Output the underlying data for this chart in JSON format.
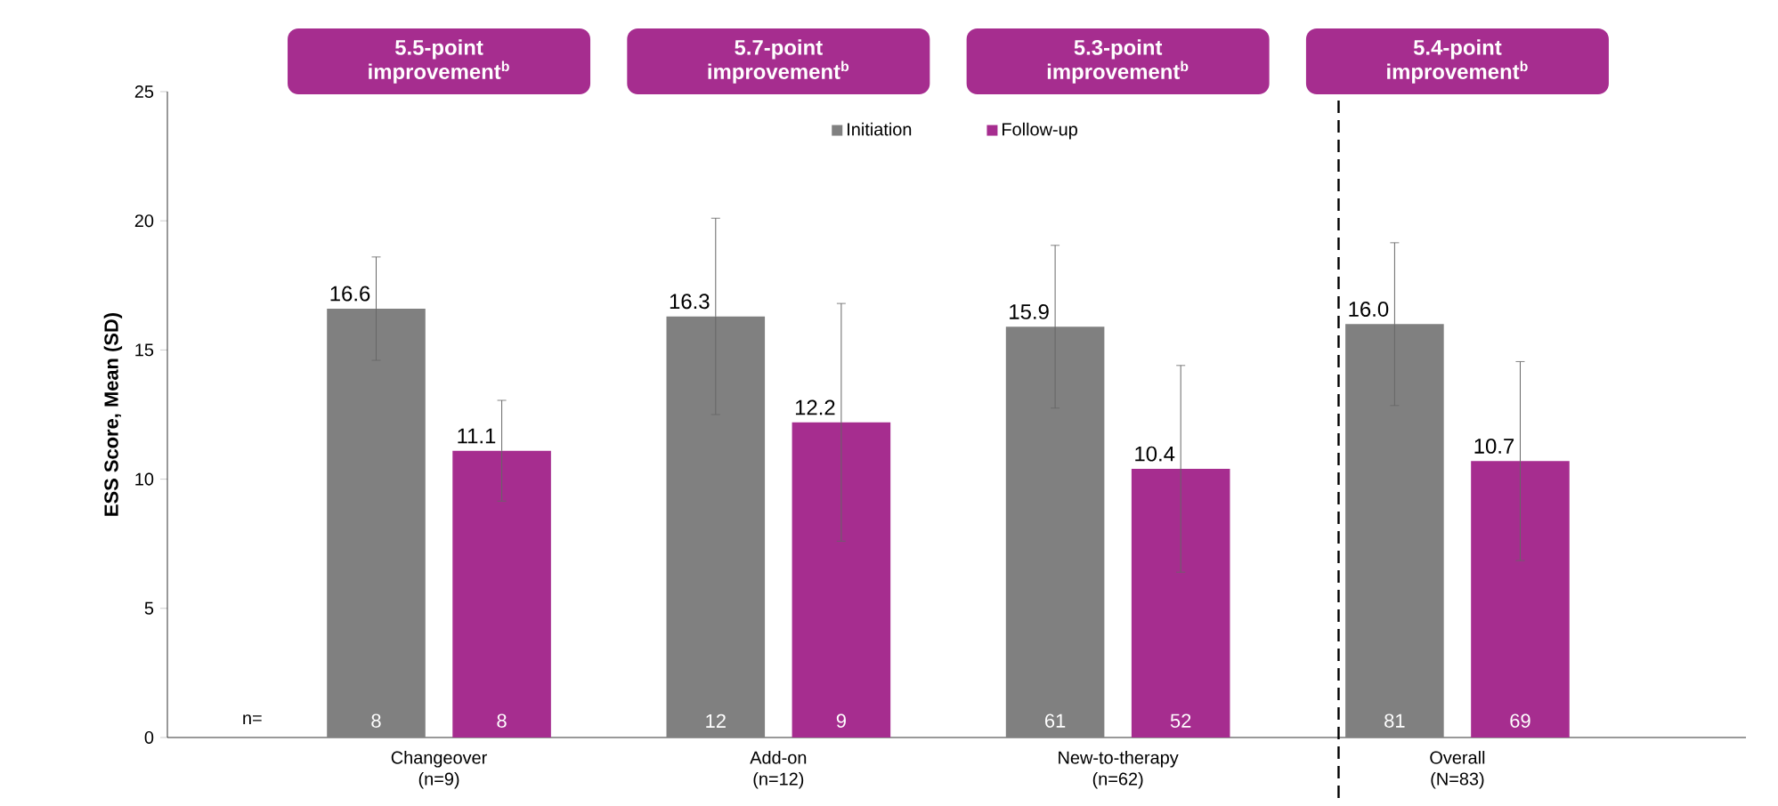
{
  "chart_data": {
    "type": "bar",
    "ylabel": "ESS Score, Mean (SD)",
    "categories": [
      "Changeover\n(n=9)",
      "Add-on\n(n=12)",
      "New-to-therapy\n(n=62)",
      "Overall\n(N=83)"
    ],
    "series": [
      {
        "name": "Initiation",
        "color": "#808080",
        "values": [
          16.6,
          16.3,
          15.9,
          16.0
        ],
        "errors": [
          2.0,
          3.8,
          3.15,
          3.15
        ],
        "value_labels": [
          "16.6",
          "16.3",
          "15.9",
          "16.0"
        ]
      },
      {
        "name": "Follow-up",
        "color": "#a62d8f",
        "values": [
          11.1,
          12.2,
          10.4,
          10.7
        ],
        "errors": [
          1.95,
          4.6,
          4.0,
          3.85
        ],
        "value_labels": [
          "11.1",
          "12.2",
          "10.4",
          "10.7"
        ]
      }
    ],
    "ylim": [
      0,
      25
    ],
    "yticks": [
      0,
      5,
      10,
      15,
      20,
      25
    ],
    "legend": "top",
    "annotations": [
      "n=",
      "8",
      "8",
      "12",
      "9",
      "61",
      "52",
      "81",
      "69",
      "5.5-point improvement$^{b}$",
      "5.7-point improvement$^{b}$",
      "5.3-point improvement$^{b}$",
      "5.4-point improvement$^{b}$"
    ]
  }
}
